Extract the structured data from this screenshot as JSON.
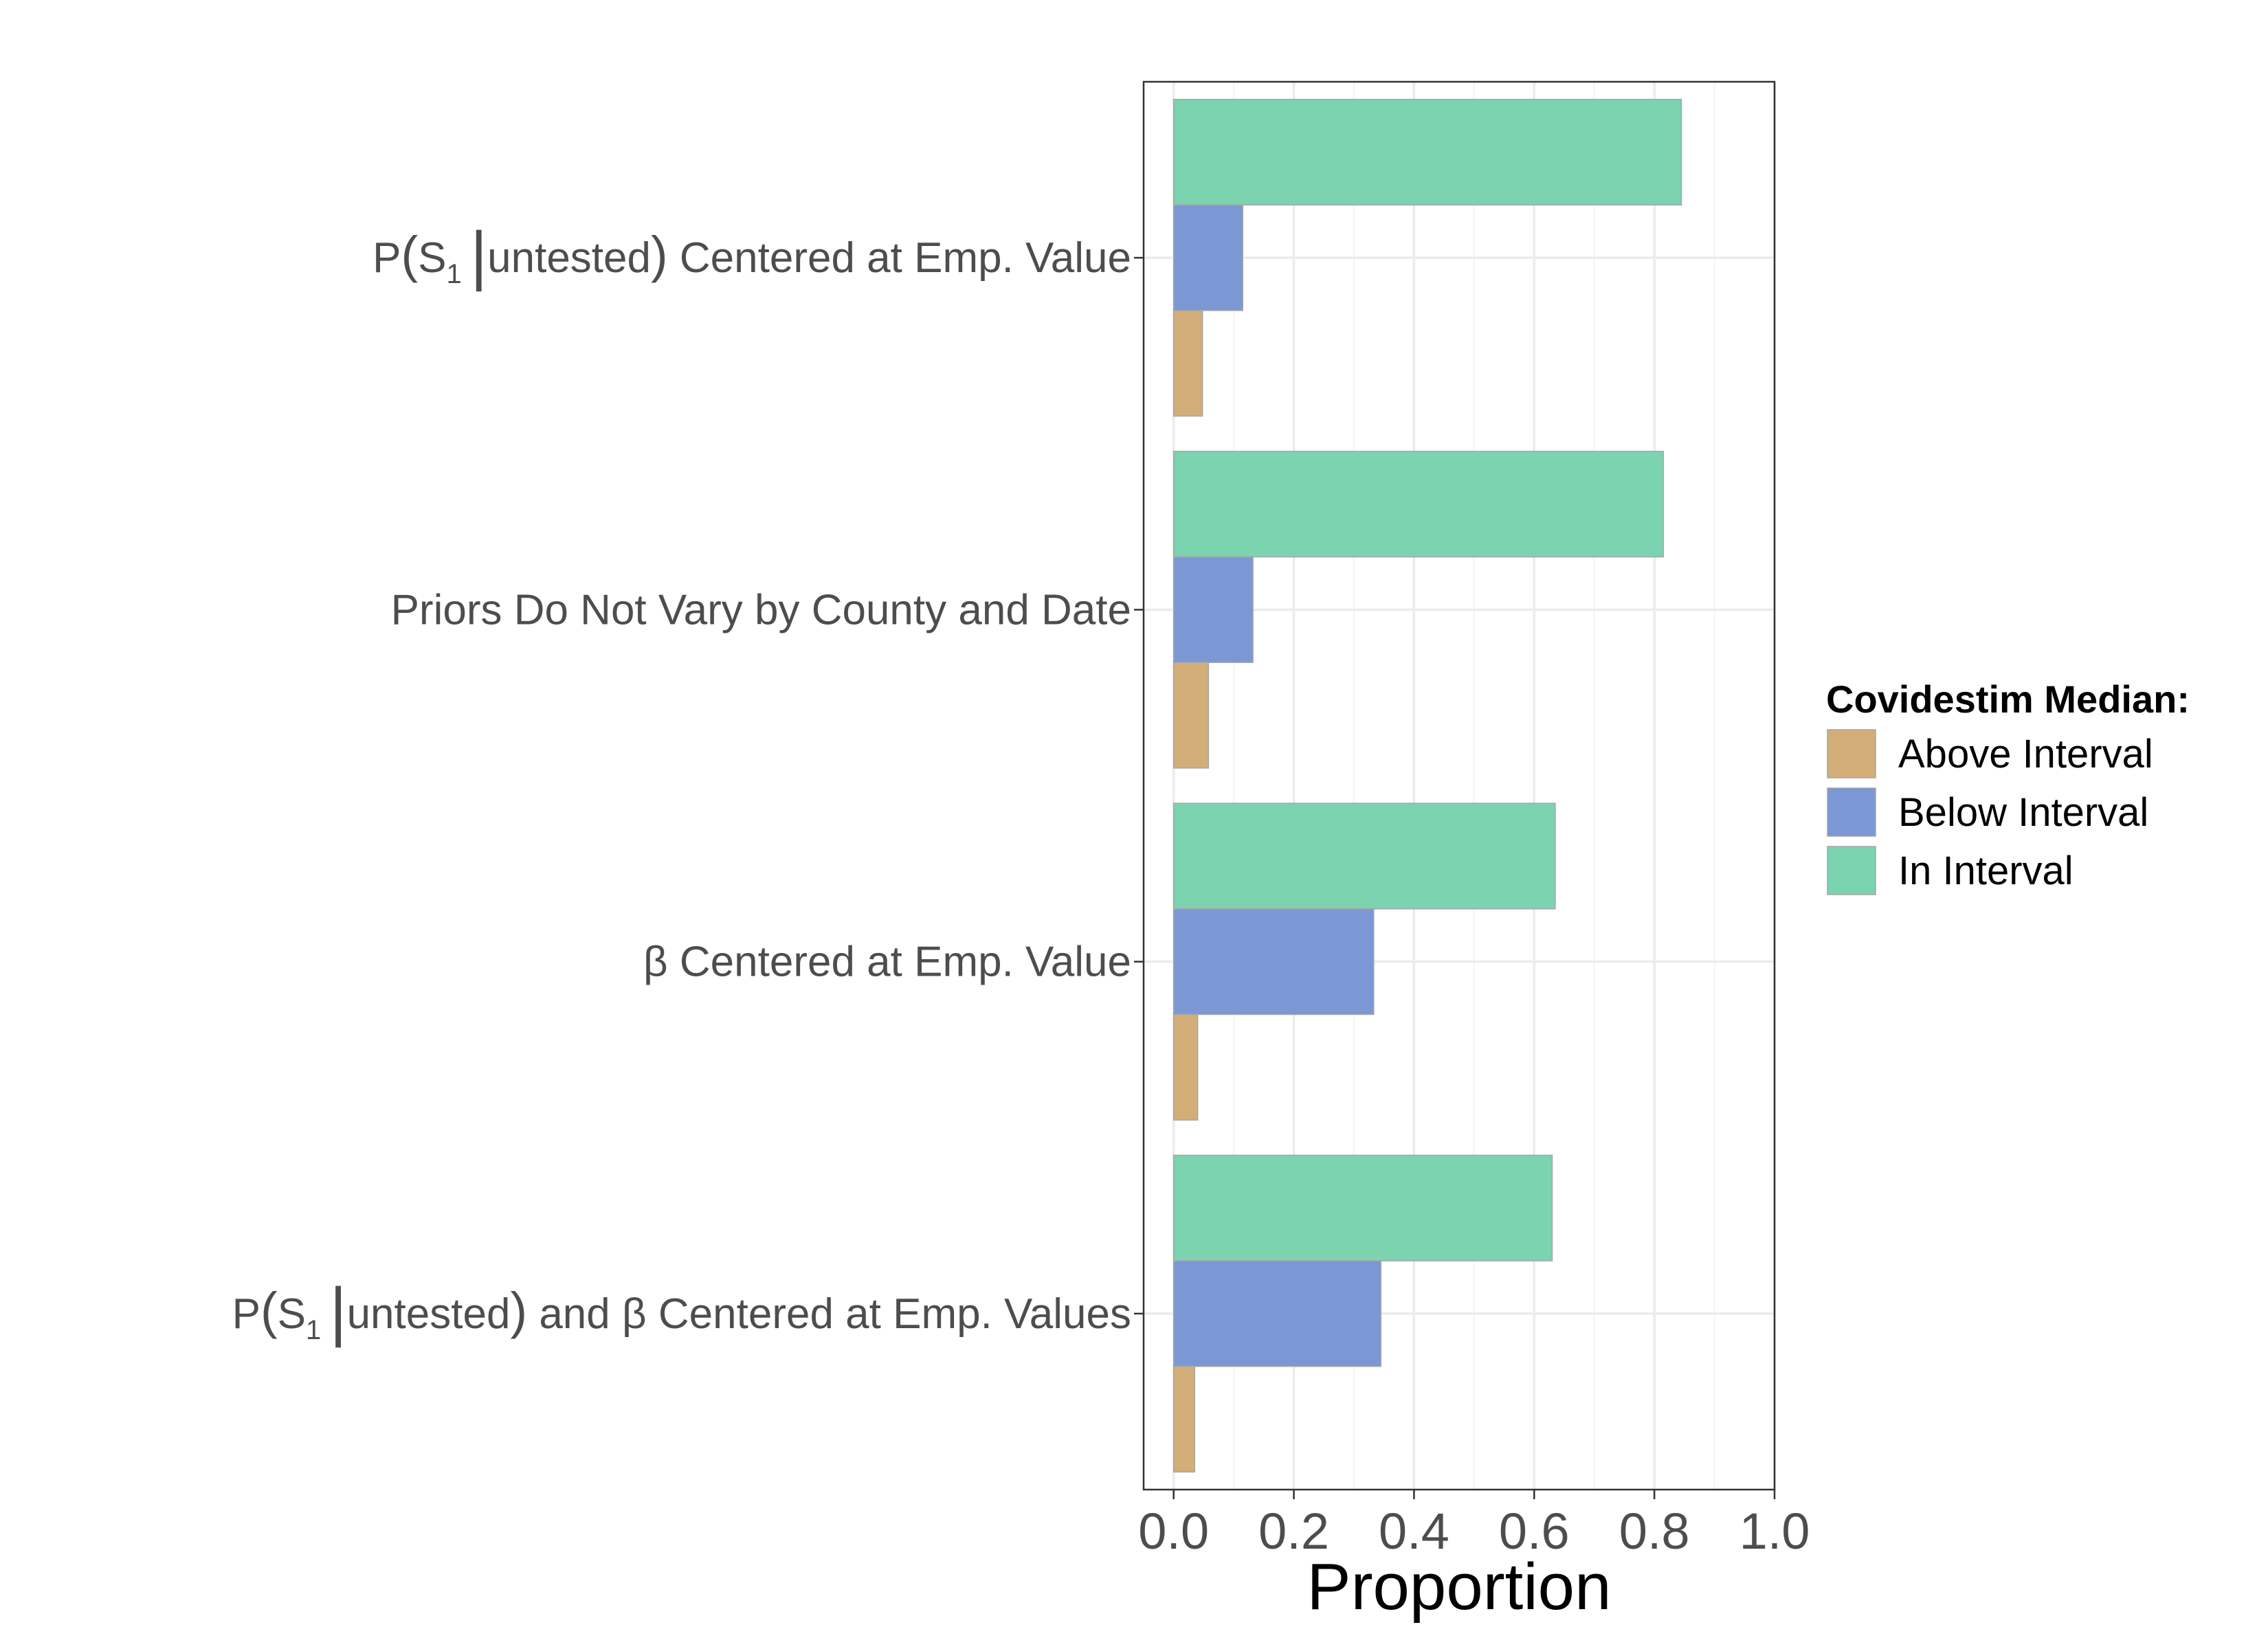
{
  "chart_data": {
    "type": "bar",
    "orientation": "horizontal",
    "xlabel": "Proportion",
    "ylabel": "",
    "xlim": [
      -0.05,
      1.0
    ],
    "xticks": [
      0.0,
      0.2,
      0.4,
      0.6,
      0.8,
      1.0
    ],
    "xtick_labels": [
      "0.0",
      "0.2",
      "0.4",
      "0.6",
      "0.8",
      "1.0"
    ],
    "grid": true,
    "categories": [
      {
        "pre": "P",
        "lp": "(",
        "s": "S",
        "sub": "1",
        "post": "untested",
        "rp": ")",
        "tail": " Centered at Emp. Value"
      },
      {
        "pre": "Priors Do Not Vary by County and Date"
      },
      {
        "pre": "β Centered at Emp. Value"
      },
      {
        "pre": "P",
        "lp": "(",
        "s": "S",
        "sub": "1",
        "post": "untested",
        "rp": ")",
        "tail": " and β Centered at Emp. Values"
      }
    ],
    "legend": {
      "title": "Covidestim Median:",
      "position": "right"
    },
    "series": [
      {
        "name": "In Interval",
        "color": "#7bd3b0",
        "values": [
          0.845,
          0.815,
          0.635,
          0.63
        ]
      },
      {
        "name": "Below Interval",
        "color": "#7b98d5",
        "values": [
          0.115,
          0.132,
          0.333,
          0.345
        ]
      },
      {
        "name": "Above Interval",
        "color": "#d3ae78",
        "values": [
          0.048,
          0.058,
          0.04,
          0.035
        ]
      }
    ],
    "legend_order": [
      "Above Interval",
      "Below Interval",
      "In Interval"
    ]
  }
}
